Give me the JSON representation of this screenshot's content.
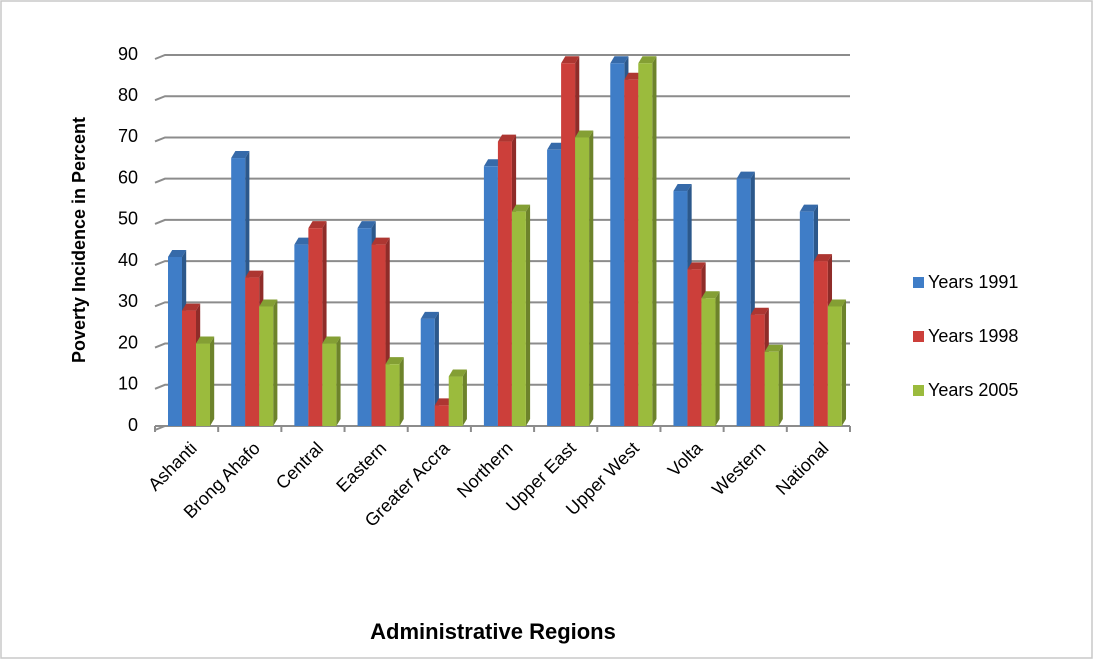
{
  "chart_data": {
    "type": "bar",
    "y_label": "Poverty Incidence in Percent",
    "x_label": "Administrative Regions",
    "categories": [
      "Ashanti",
      "Brong Ahafo",
      "Central",
      "Eastern",
      "Greater Accra",
      "Northern",
      "Upper East",
      "Upper West",
      "Volta",
      "Western",
      "National"
    ],
    "series": [
      {
        "name": "Years 1991",
        "color": "#3f7dc7",
        "values": [
          41,
          65,
          44,
          48,
          26,
          63,
          67,
          88,
          57,
          60,
          52
        ]
      },
      {
        "name": "Years 1998",
        "color": "#cc3f3a",
        "values": [
          28,
          36,
          48,
          44,
          5,
          69,
          88,
          84,
          38,
          27,
          40
        ]
      },
      {
        "name": "Years 2005",
        "color": "#9bbb3d",
        "values": [
          20,
          29,
          20,
          15,
          12,
          52,
          70,
          88,
          31,
          18,
          29
        ]
      }
    ],
    "ylim": [
      0,
      90
    ],
    "yticks": [
      0,
      10,
      20,
      30,
      40,
      50,
      60,
      70,
      80,
      90
    ],
    "grid": true
  }
}
